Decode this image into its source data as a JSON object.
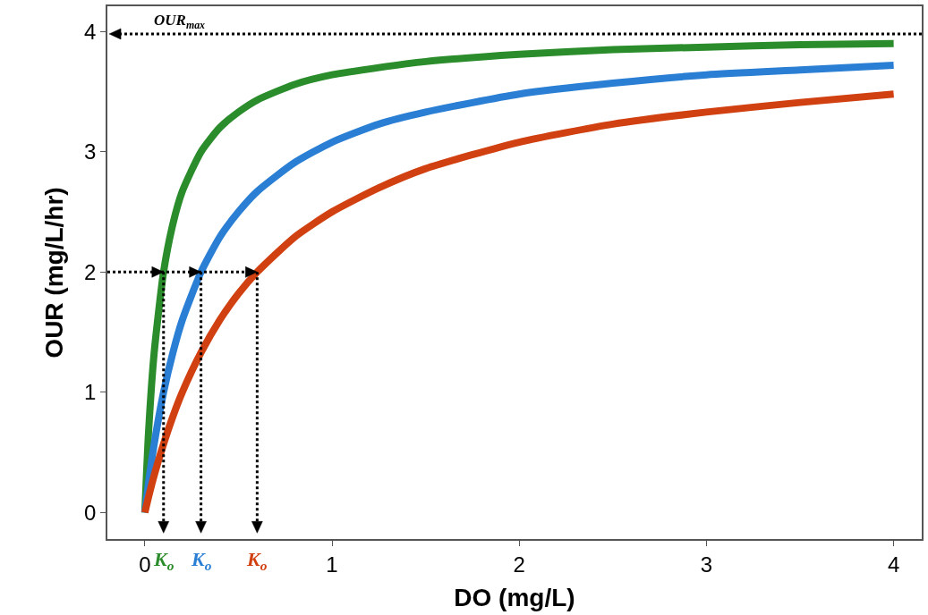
{
  "chart_data": {
    "type": "line",
    "xlabel": "DO (mg/L)",
    "ylabel": "OUR (mg/L/hr)",
    "x": [
      0,
      0.02,
      0.05,
      0.1,
      0.15,
      0.2,
      0.3,
      0.4,
      0.5,
      0.6,
      0.8,
      1,
      1.25,
      1.5,
      2,
      2.5,
      3,
      3.5,
      4
    ],
    "series": [
      {
        "color": "#2a8c2a",
        "values": [
          0,
          0.67,
          1.33,
          2,
          2.4,
          2.67,
          3,
          3.2,
          3.33,
          3.43,
          3.56,
          3.64,
          3.7,
          3.75,
          3.81,
          3.85,
          3.87,
          3.89,
          3.9
        ]
      },
      {
        "color": "#2a7fd4",
        "values": [
          0,
          0.25,
          0.57,
          1,
          1.33,
          1.6,
          2,
          2.29,
          2.5,
          2.67,
          2.91,
          3.08,
          3.23,
          3.33,
          3.48,
          3.57,
          3.64,
          3.68,
          3.72
        ]
      },
      {
        "color": "#d14010",
        "values": [
          0,
          0.13,
          0.31,
          0.57,
          0.8,
          1,
          1.33,
          1.6,
          1.82,
          2,
          2.29,
          2.5,
          2.7,
          2.86,
          3.08,
          3.23,
          3.33,
          3.41,
          3.48
        ]
      }
    ],
    "xlim": [
      -0.2,
      4.15
    ],
    "ylim": [
      -0.22,
      4.21
    ],
    "xticks": [
      0,
      1,
      2,
      3,
      4
    ],
    "yticks": [
      0,
      1,
      2,
      3,
      4
    ],
    "grid": false,
    "marker": "none",
    "line_style": "solid",
    "ref_lines": [
      {
        "axis": "y",
        "value": 3.98,
        "label": "OUR$_{max}$",
        "color": "#000000",
        "line_style": "dotted"
      },
      {
        "axis": "y",
        "value": 2,
        "color": "#000000",
        "line_style": "dotted"
      },
      {
        "axis": "x",
        "value": 0.1,
        "label": "K$_{o}$",
        "color": "#000000",
        "line_style": "dotted"
      },
      {
        "axis": "x",
        "value": 0.3,
        "label": "K$_{o}$",
        "color": "#000000",
        "line_style": "dotted"
      },
      {
        "axis": "x",
        "value": 0.6,
        "label": "K$_{o}$",
        "color": "#000000",
        "line_style": "dotted"
      }
    ]
  }
}
